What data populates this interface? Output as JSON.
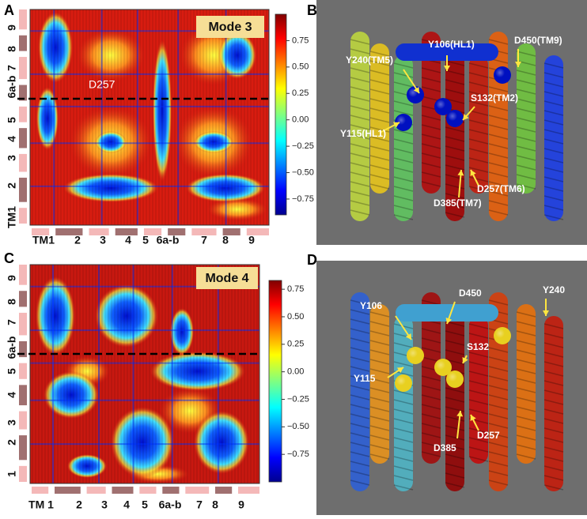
{
  "panels": [
    {
      "label": "A",
      "mode_label": "Mode 3",
      "annotation": "D257",
      "y_labels": [
        "9",
        "8",
        "7",
        "6a-b",
        "5",
        "4",
        "3",
        "2",
        "TM1"
      ],
      "x_labels": [
        "TM1",
        "2",
        "3",
        "4",
        "5",
        "6a-b",
        "7",
        "8",
        "9"
      ],
      "colorbar": {
        "lim": [
          -0.9,
          1.0
        ],
        "ticks": [
          0.75,
          {
            "value": 0.5,
            "label": "0.50"
          },
          0.25,
          {
            "value": 0,
            "label": "0.00"
          },
          {
            "value": -0.25,
            "label": "−0.25"
          },
          {
            "value": -0.5,
            "label": "−0.50"
          },
          {
            "value": -0.75,
            "label": "−0.75"
          }
        ]
      }
    },
    {
      "label": "C",
      "mode_label": "Mode 4",
      "y_labels": [
        "9",
        "8",
        "7",
        "6a-b",
        "5",
        "4",
        "3",
        "2",
        "1"
      ],
      "x_labels": [
        "TM 1",
        "2",
        "3",
        "4",
        "5",
        "6a-b",
        "7",
        "8",
        "9"
      ],
      "colorbar": {
        "lim": [
          -1.0,
          0.83
        ],
        "ticks": [
          0.75,
          {
            "value": 0.5,
            "label": "0.50"
          },
          0.25,
          {
            "value": 0,
            "label": "0.00"
          },
          {
            "value": -0.25,
            "label": "−0.25"
          },
          {
            "value": -0.5,
            "label": "−0.50"
          },
          {
            "value": -0.75,
            "label": "−0.75"
          }
        ]
      }
    }
  ],
  "structures": [
    {
      "label": "B",
      "residues": [
        "Y106(HL1)",
        "D450(TM9)",
        "Y240(TM5)",
        "S132(TM2)",
        "Y115(HL1)",
        "D257(TM6)",
        "D385(TM7)"
      ]
    },
    {
      "label": "D",
      "residues": [
        "Y106",
        "D450",
        "Y240",
        "S132",
        "Y115",
        "D257",
        "D385"
      ]
    }
  ]
}
